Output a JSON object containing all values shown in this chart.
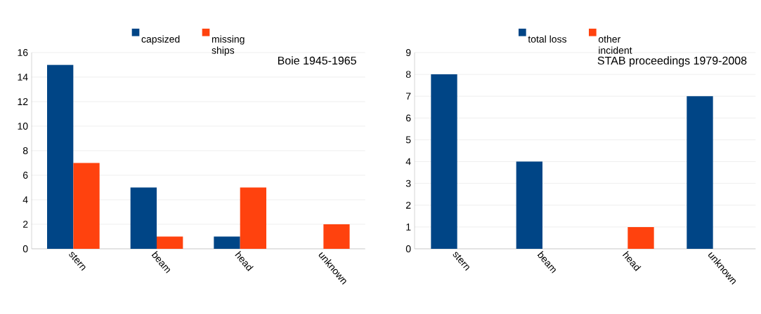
{
  "chart_data": [
    {
      "type": "bar",
      "title": "Boie 1945-1965",
      "categories": [
        "stern",
        "beam",
        "head",
        "unknown"
      ],
      "series": [
        {
          "name": "capsized",
          "color": "#004586",
          "values": [
            15,
            5,
            1,
            0
          ]
        },
        {
          "name": "missing ships",
          "color": "#ff420e",
          "values": [
            7,
            1,
            5,
            2
          ]
        }
      ],
      "ylim": [
        0,
        16
      ],
      "yticks": [
        0,
        2,
        4,
        6,
        8,
        10,
        12,
        14,
        16
      ],
      "grid": "y",
      "legend": "top"
    },
    {
      "type": "bar",
      "title": "STAB proceedings 1979-2008",
      "categories": [
        "stern",
        "beam",
        "head",
        "unknown"
      ],
      "series": [
        {
          "name": "total loss",
          "color": "#004586",
          "values": [
            8,
            4,
            0,
            7
          ]
        },
        {
          "name": "other incident",
          "color": "#ff420e",
          "values": [
            0,
            0,
            1,
            0
          ]
        }
      ],
      "ylim": [
        0,
        9
      ],
      "yticks": [
        0,
        1,
        2,
        3,
        4,
        5,
        6,
        7,
        8,
        9
      ],
      "grid": "y",
      "legend": "top"
    }
  ]
}
